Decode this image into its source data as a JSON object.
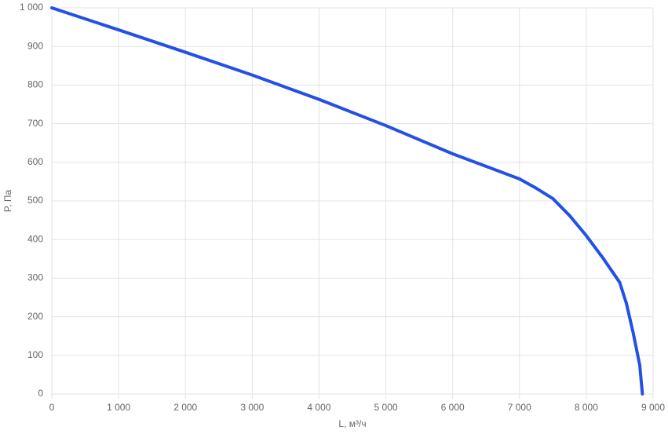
{
  "chart_data": {
    "type": "line",
    "x_label": "L, м³/ч",
    "y_label": "P, Па",
    "x": [
      0,
      1000,
      2000,
      3000,
      4000,
      5000,
      6000,
      7000,
      7250,
      7500,
      7750,
      8000,
      8250,
      8500,
      8600,
      8700,
      8800,
      8840
    ],
    "series": [
      {
        "name": "P",
        "color": "#2350e6",
        "values": [
          1000,
          943,
          885,
          826,
          763,
          695,
          622,
          557,
          533,
          506,
          462,
          410,
          352,
          289,
          235,
          160,
          75,
          0
        ]
      }
    ],
    "xlim": [
      0,
      9000
    ],
    "xticks": [
      0,
      {
        "value": 1000,
        "label": "1 000"
      },
      {
        "value": 2000,
        "label": "2 000"
      },
      {
        "value": 3000,
        "label": "3 000"
      },
      {
        "value": 4000,
        "label": "4 000"
      },
      {
        "value": 5000,
        "label": "5 000"
      },
      {
        "value": 6000,
        "label": "6 000"
      },
      {
        "value": 7000,
        "label": "7 000"
      },
      {
        "value": 8000,
        "label": "8 000"
      },
      {
        "value": 9000,
        "label": "9 000"
      }
    ],
    "ylim": [
      0,
      1000
    ],
    "yticks": [
      0,
      100,
      200,
      300,
      400,
      500,
      600,
      700,
      800,
      900,
      {
        "value": 1000,
        "label": "1 000"
      }
    ],
    "grid": true
  }
}
